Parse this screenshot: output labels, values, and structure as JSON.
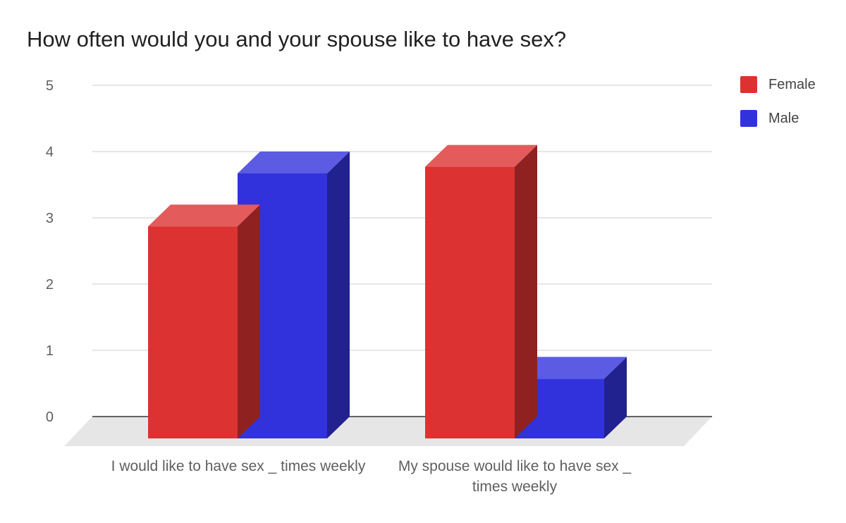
{
  "chart_data": {
    "type": "bar",
    "title": "How often would you and your spouse like to have sex?",
    "categories": [
      "I would like to have sex _ times weekly",
      "My spouse would like to have sex _ times weekly"
    ],
    "series": [
      {
        "name": "Female",
        "color": "#dc3232",
        "values": [
          3.2,
          4.1
        ]
      },
      {
        "name": "Male",
        "color": "#3232dc",
        "values": [
          4.0,
          0.9
        ]
      }
    ],
    "ylim": [
      0,
      5
    ],
    "yticks": [
      "0",
      "1",
      "2",
      "3",
      "4",
      "5"
    ],
    "grid": true,
    "legend_position": "right",
    "style": "3d"
  }
}
